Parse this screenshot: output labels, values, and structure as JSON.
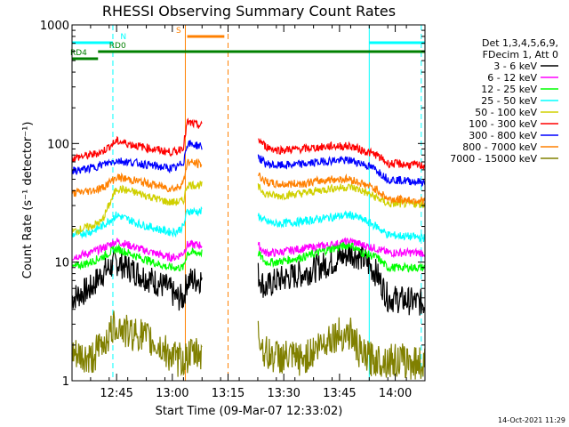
{
  "title": "RHESSI Observing Summary Count Rates",
  "timestamp": "14-Oct-2021 11:29",
  "chart_data": {
    "type": "line",
    "title": "RHESSI Observing Summary Count Rates",
    "xlabel": "Start Time (09-Mar-07 12:33:02)",
    "ylabel": "Count Rate (s⁻¹ detector⁻¹)",
    "yscale": "log",
    "ylim": [
      1,
      1000
    ],
    "xlim_min": [
      0,
      95
    ],
    "x_tick_labels": [
      "12:45",
      "13:00",
      "13:15",
      "13:30",
      "13:45",
      "14:00"
    ],
    "x_tick_values_min": [
      12,
      27,
      42,
      57,
      72,
      87
    ],
    "y_tick_labels": [
      "1",
      "10",
      "100",
      "1000"
    ],
    "y_tick_values": [
      1,
      10,
      100,
      1000
    ],
    "legend_header": [
      "Det 1,3,4,5,6,9,",
      "FDecim 1, Att 0"
    ],
    "data_gaps_min": [
      [
        35,
        50
      ]
    ],
    "series": [
      {
        "name": "3 - 6 keV",
        "color": "#000000",
        "x": [
          0,
          5,
          8,
          12,
          15,
          18,
          26,
          28,
          30,
          31,
          50,
          52,
          55,
          62,
          70,
          75,
          78,
          82,
          85,
          95
        ],
        "y": [
          5,
          6,
          8,
          10,
          9,
          8,
          6,
          5,
          5,
          7,
          8,
          6,
          7,
          8,
          10,
          12,
          11,
          8,
          5,
          4.5
        ]
      },
      {
        "name": "6 - 12 keV",
        "color": "#ff00ff",
        "x": [
          0,
          5,
          8,
          12,
          15,
          18,
          26,
          28,
          30,
          31,
          50,
          52,
          55,
          62,
          70,
          75,
          78,
          82,
          85,
          95
        ],
        "y": [
          11,
          12,
          13,
          15,
          14,
          13,
          11,
          11,
          12,
          14,
          14,
          12,
          12,
          13,
          14,
          15,
          14,
          13,
          12,
          12
        ]
      },
      {
        "name": "12 - 25 keV",
        "color": "#00ff00",
        "x": [
          0,
          5,
          8,
          12,
          15,
          18,
          26,
          28,
          30,
          31,
          50,
          52,
          55,
          62,
          70,
          75,
          78,
          82,
          85,
          95
        ],
        "y": [
          9,
          10,
          11,
          13,
          12,
          11,
          9,
          9,
          9,
          12,
          12,
          10,
          10,
          11,
          13,
          14,
          12,
          11,
          9,
          9
        ]
      },
      {
        "name": "25 - 50 keV",
        "color": "#00ffff",
        "x": [
          0,
          5,
          8,
          12,
          15,
          18,
          26,
          28,
          30,
          31,
          50,
          52,
          55,
          62,
          70,
          75,
          78,
          82,
          85,
          95
        ],
        "y": [
          17,
          18,
          20,
          25,
          23,
          21,
          18,
          18,
          20,
          27,
          25,
          22,
          21,
          22,
          24,
          25,
          23,
          20,
          17,
          16
        ]
      },
      {
        "name": "50 - 100 keV",
        "color": "#d0d000",
        "x": [
          0,
          5,
          8,
          12,
          15,
          18,
          26,
          28,
          30,
          31,
          50,
          52,
          55,
          62,
          70,
          75,
          78,
          82,
          85,
          95
        ],
        "y": [
          18,
          20,
          22,
          42,
          40,
          38,
          32,
          32,
          33,
          45,
          43,
          38,
          36,
          38,
          42,
          43,
          40,
          35,
          31,
          31
        ]
      },
      {
        "name": "100 - 300 keV",
        "color": "#ff0000",
        "x": [
          0,
          5,
          8,
          12,
          15,
          18,
          26,
          28,
          30,
          31,
          50,
          52,
          55,
          62,
          70,
          75,
          78,
          82,
          85,
          95
        ],
        "y": [
          75,
          80,
          85,
          105,
          100,
          95,
          85,
          85,
          95,
          150,
          110,
          95,
          88,
          90,
          95,
          95,
          88,
          80,
          68,
          65
        ]
      },
      {
        "name": "300 - 800 keV",
        "color": "#0000ff",
        "x": [
          0,
          5,
          8,
          12,
          15,
          18,
          26,
          28,
          30,
          31,
          50,
          52,
          55,
          62,
          70,
          75,
          78,
          82,
          85,
          95
        ],
        "y": [
          58,
          62,
          66,
          72,
          70,
          68,
          62,
          62,
          70,
          100,
          78,
          68,
          65,
          67,
          72,
          72,
          68,
          60,
          50,
          47
        ]
      },
      {
        "name": "800 - 7000 keV",
        "color": "#ff8000",
        "x": [
          0,
          5,
          8,
          12,
          15,
          18,
          26,
          28,
          30,
          31,
          50,
          52,
          55,
          62,
          70,
          75,
          78,
          82,
          85,
          95
        ],
        "y": [
          38,
          40,
          42,
          52,
          50,
          48,
          42,
          42,
          47,
          70,
          55,
          48,
          45,
          46,
          50,
          50,
          46,
          41,
          34,
          33
        ]
      },
      {
        "name": "7000 - 15000 keV",
        "color": "#808000",
        "x": [
          0,
          5,
          8,
          12,
          15,
          18,
          26,
          28,
          30,
          31,
          50,
          52,
          55,
          62,
          70,
          75,
          78,
          82,
          85,
          95
        ],
        "y": [
          1.6,
          1.5,
          2,
          3,
          2.5,
          2.5,
          1.7,
          1.5,
          1.5,
          1.6,
          2.5,
          1.7,
          1.6,
          1.5,
          2.4,
          2.5,
          1.6,
          1.5,
          1.5,
          1.4
        ]
      }
    ],
    "flag_lines": [
      {
        "label": "N",
        "color": "#00ffff",
        "level": 0,
        "segments": [
          [
            0,
            11
          ],
          [
            80,
            95
          ]
        ]
      },
      {
        "label": "S",
        "color": "#ff8000",
        "level": 1,
        "segments": [
          [
            31,
            41
          ]
        ]
      },
      {
        "label": "RD0",
        "color": "#008000",
        "level": 2,
        "segments": [
          [
            7,
            95
          ]
        ]
      },
      {
        "label": "RD4",
        "color": "#008000",
        "level": 3,
        "segments": [
          [
            0,
            7
          ]
        ]
      }
    ],
    "vertical_markers": [
      {
        "x": 0,
        "color": "#00ffff",
        "style": "solid"
      },
      {
        "x": 11,
        "color": "#00ffff",
        "style": "dashed"
      },
      {
        "x": 30.5,
        "color": "#ff8000",
        "style": "solid"
      },
      {
        "x": 42,
        "color": "#ff8000",
        "style": "dashed"
      },
      {
        "x": 80,
        "color": "#00ffff",
        "style": "solid"
      },
      {
        "x": 94,
        "color": "#00ffff",
        "style": "dashed"
      }
    ],
    "grid": false,
    "legend_position": "right"
  }
}
